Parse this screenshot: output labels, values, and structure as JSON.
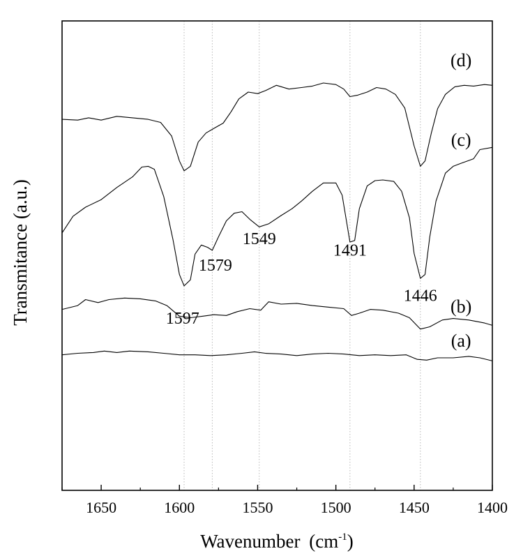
{
  "chart_data": {
    "type": "line",
    "title": "",
    "xlabel": "Wavenumber",
    "xlabel_unit": "(cm",
    "xlabel_unit_sup": "-1",
    "xlabel_unit_close": ")",
    "ylabel": "Transmitance (a.u.)",
    "xlim": [
      1675,
      1400
    ],
    "x_reversed": true,
    "y_ticks_shown": false,
    "xticks": [
      {
        "value": 1650,
        "label": "1650"
      },
      {
        "value": 1600,
        "label": "1600"
      },
      {
        "value": 1550,
        "label": "1550"
      },
      {
        "value": 1500,
        "label": "1500"
      },
      {
        "value": 1450,
        "label": "1450"
      },
      {
        "value": 1400,
        "label": "1400"
      }
    ],
    "reference_lines": [
      1597,
      1579,
      1549,
      1491,
      1446
    ],
    "reference_line_style": "dotted-gray",
    "series": [
      {
        "name": "(a)",
        "points": [
          [
            1675,
            1.79
          ],
          [
            1665,
            1.81
          ],
          [
            1655,
            1.82
          ],
          [
            1648,
            1.84
          ],
          [
            1640,
            1.82
          ],
          [
            1632,
            1.84
          ],
          [
            1620,
            1.83
          ],
          [
            1610,
            1.81
          ],
          [
            1600,
            1.79
          ],
          [
            1590,
            1.79
          ],
          [
            1580,
            1.78
          ],
          [
            1570,
            1.79
          ],
          [
            1560,
            1.81
          ],
          [
            1552,
            1.83
          ],
          [
            1545,
            1.81
          ],
          [
            1535,
            1.8
          ],
          [
            1525,
            1.78
          ],
          [
            1515,
            1.8
          ],
          [
            1505,
            1.81
          ],
          [
            1495,
            1.8
          ],
          [
            1485,
            1.78
          ],
          [
            1475,
            1.79
          ],
          [
            1465,
            1.78
          ],
          [
            1455,
            1.79
          ],
          [
            1448,
            1.73
          ],
          [
            1442,
            1.72
          ],
          [
            1435,
            1.75
          ],
          [
            1425,
            1.75
          ],
          [
            1415,
            1.77
          ],
          [
            1408,
            1.75
          ],
          [
            1400,
            1.71
          ]
        ]
      },
      {
        "name": "(b)",
        "points": [
          [
            1675,
            2.39
          ],
          [
            1665,
            2.44
          ],
          [
            1660,
            2.52
          ],
          [
            1652,
            2.48
          ],
          [
            1645,
            2.52
          ],
          [
            1635,
            2.54
          ],
          [
            1625,
            2.53
          ],
          [
            1615,
            2.5
          ],
          [
            1608,
            2.44
          ],
          [
            1600,
            2.3
          ],
          [
            1593,
            2.28
          ],
          [
            1585,
            2.3
          ],
          [
            1578,
            2.32
          ],
          [
            1570,
            2.31
          ],
          [
            1563,
            2.36
          ],
          [
            1555,
            2.4
          ],
          [
            1548,
            2.38
          ],
          [
            1543,
            2.49
          ],
          [
            1535,
            2.46
          ],
          [
            1525,
            2.47
          ],
          [
            1515,
            2.44
          ],
          [
            1505,
            2.42
          ],
          [
            1495,
            2.4
          ],
          [
            1490,
            2.31
          ],
          [
            1485,
            2.34
          ],
          [
            1478,
            2.39
          ],
          [
            1470,
            2.38
          ],
          [
            1460,
            2.34
          ],
          [
            1453,
            2.28
          ],
          [
            1446,
            2.13
          ],
          [
            1440,
            2.16
          ],
          [
            1432,
            2.25
          ],
          [
            1425,
            2.27
          ],
          [
            1415,
            2.25
          ],
          [
            1405,
            2.21
          ],
          [
            1400,
            2.18
          ]
        ]
      },
      {
        "name": "(c)",
        "points": [
          [
            1675,
            3.4
          ],
          [
            1668,
            3.62
          ],
          [
            1660,
            3.74
          ],
          [
            1650,
            3.84
          ],
          [
            1640,
            4.0
          ],
          [
            1630,
            4.14
          ],
          [
            1624,
            4.27
          ],
          [
            1620,
            4.28
          ],
          [
            1616,
            4.24
          ],
          [
            1610,
            3.88
          ],
          [
            1604,
            3.3
          ],
          [
            1600,
            2.85
          ],
          [
            1597,
            2.7
          ],
          [
            1593,
            2.78
          ],
          [
            1590,
            3.12
          ],
          [
            1586,
            3.24
          ],
          [
            1582,
            3.21
          ],
          [
            1579,
            3.17
          ],
          [
            1575,
            3.35
          ],
          [
            1570,
            3.56
          ],
          [
            1565,
            3.66
          ],
          [
            1560,
            3.68
          ],
          [
            1555,
            3.58
          ],
          [
            1549,
            3.48
          ],
          [
            1543,
            3.52
          ],
          [
            1535,
            3.63
          ],
          [
            1528,
            3.72
          ],
          [
            1522,
            3.82
          ],
          [
            1515,
            3.95
          ],
          [
            1508,
            4.06
          ],
          [
            1500,
            4.06
          ],
          [
            1496,
            3.9
          ],
          [
            1493,
            3.53
          ],
          [
            1491,
            3.28
          ],
          [
            1488,
            3.3
          ],
          [
            1485,
            3.72
          ],
          [
            1480,
            4.02
          ],
          [
            1475,
            4.09
          ],
          [
            1470,
            4.1
          ],
          [
            1463,
            4.08
          ],
          [
            1458,
            3.95
          ],
          [
            1453,
            3.6
          ],
          [
            1450,
            3.13
          ],
          [
            1446,
            2.8
          ],
          [
            1443,
            2.85
          ],
          [
            1440,
            3.35
          ],
          [
            1436,
            3.82
          ],
          [
            1430,
            4.19
          ],
          [
            1425,
            4.28
          ],
          [
            1420,
            4.32
          ],
          [
            1412,
            4.38
          ],
          [
            1408,
            4.5
          ],
          [
            1400,
            4.53
          ]
        ]
      },
      {
        "name": "(d)",
        "points": [
          [
            1675,
            4.9
          ],
          [
            1665,
            4.89
          ],
          [
            1658,
            4.92
          ],
          [
            1650,
            4.89
          ],
          [
            1640,
            4.94
          ],
          [
            1630,
            4.92
          ],
          [
            1620,
            4.9
          ],
          [
            1612,
            4.86
          ],
          [
            1605,
            4.68
          ],
          [
            1600,
            4.35
          ],
          [
            1597,
            4.22
          ],
          [
            1593,
            4.28
          ],
          [
            1588,
            4.6
          ],
          [
            1583,
            4.72
          ],
          [
            1578,
            4.78
          ],
          [
            1572,
            4.85
          ],
          [
            1567,
            5.0
          ],
          [
            1562,
            5.17
          ],
          [
            1556,
            5.26
          ],
          [
            1550,
            5.24
          ],
          [
            1545,
            5.28
          ],
          [
            1538,
            5.35
          ],
          [
            1530,
            5.3
          ],
          [
            1522,
            5.32
          ],
          [
            1515,
            5.34
          ],
          [
            1508,
            5.38
          ],
          [
            1500,
            5.36
          ],
          [
            1495,
            5.3
          ],
          [
            1491,
            5.2
          ],
          [
            1486,
            5.22
          ],
          [
            1480,
            5.26
          ],
          [
            1474,
            5.32
          ],
          [
            1468,
            5.3
          ],
          [
            1462,
            5.23
          ],
          [
            1456,
            5.05
          ],
          [
            1450,
            4.55
          ],
          [
            1446,
            4.28
          ],
          [
            1443,
            4.35
          ],
          [
            1439,
            4.72
          ],
          [
            1435,
            5.04
          ],
          [
            1430,
            5.23
          ],
          [
            1424,
            5.33
          ],
          [
            1418,
            5.35
          ],
          [
            1412,
            5.34
          ],
          [
            1405,
            5.36
          ],
          [
            1400,
            5.35
          ]
        ]
      }
    ],
    "ylim": [
      0.0,
      6.2
    ],
    "series_labels": [
      {
        "text": "(a)",
        "x": 1420,
        "y": 1.9
      },
      {
        "text": "(b)",
        "x": 1420,
        "y": 2.35
      },
      {
        "text": "(c)",
        "x": 1420,
        "y": 4.55
      },
      {
        "text": "(d)",
        "x": 1420,
        "y": 5.6
      }
    ],
    "annotations": [
      {
        "text": "1597",
        "x": 1598,
        "y": 2.2
      },
      {
        "text": "1579",
        "x": 1577,
        "y": 2.9
      },
      {
        "text": "1549",
        "x": 1549,
        "y": 3.25
      },
      {
        "text": "1491",
        "x": 1491,
        "y": 3.1
      },
      {
        "text": "1446",
        "x": 1446,
        "y": 2.5
      }
    ]
  }
}
